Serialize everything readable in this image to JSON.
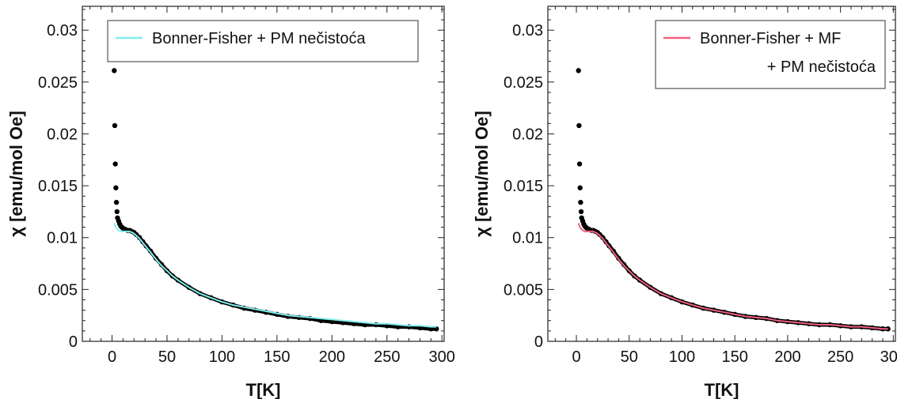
{
  "chart_data": [
    {
      "type": "scatter",
      "xlabel": "T[K]",
      "ylabel": "χ [emu/mol Oe]",
      "xlim": [
        -27,
        302
      ],
      "ylim": [
        0,
        0.0323
      ],
      "x_ticks": [
        0,
        50,
        100,
        150,
        200,
        250,
        300
      ],
      "x_tick_labels": [
        "0",
        "50",
        "100",
        "150",
        "200",
        "250",
        "300"
      ],
      "y_ticks": [
        0,
        0.005,
        0.01,
        0.015,
        0.02,
        0.025,
        0.03
      ],
      "y_tick_labels": [
        "0",
        "0.005",
        "0.01",
        "0.015",
        "0.02",
        "0.025",
        "0.03"
      ],
      "grid": false,
      "legend_position": "top-right",
      "legend_lines": [
        "Bonner-Fisher + PM nečistoća"
      ],
      "series": [
        {
          "type": "scatter",
          "color": "#000000",
          "x": [
            2,
            2.5,
            3,
            3.5,
            4,
            4.5,
            5,
            6,
            7,
            8,
            9,
            10,
            12,
            14,
            16,
            18,
            20,
            22,
            25,
            28,
            31,
            35,
            40,
            45,
            50,
            55,
            60,
            70,
            80,
            90,
            100,
            110,
            120,
            130,
            140,
            150,
            160,
            170,
            180,
            190,
            200,
            210,
            220,
            230,
            240,
            250,
            260,
            270,
            280,
            290,
            295
          ],
          "y": [
            0.0261,
            0.0208,
            0.0171,
            0.0148,
            0.0134,
            0.0125,
            0.0119,
            0.0116,
            0.0113,
            0.0111,
            0.011,
            0.0109,
            0.0108,
            0.0107,
            0.0107,
            0.0106,
            0.0105,
            0.0103,
            0.01,
            0.0096,
            0.0092,
            0.0087,
            0.008,
            0.0074,
            0.0068,
            0.0063,
            0.0059,
            0.0052,
            0.0046,
            0.0042,
            0.0038,
            0.0035,
            0.0032,
            0.003,
            0.0028,
            0.0026,
            0.0024,
            0.0023,
            0.0022,
            0.002,
            0.0019,
            0.0018,
            0.0017,
            0.0016,
            0.0016,
            0.0015,
            0.0014,
            0.0014,
            0.0013,
            0.0012,
            0.0012
          ]
        },
        {
          "type": "line",
          "color": "#80eeee",
          "x": [
            2,
            3,
            4,
            5,
            6,
            8,
            10,
            12,
            14,
            16,
            18,
            20,
            22,
            25,
            28,
            31,
            35,
            40,
            45,
            50,
            55,
            60,
            70,
            80,
            90,
            100,
            110,
            120,
            130,
            140,
            150,
            160,
            170,
            180,
            190,
            200,
            210,
            220,
            230,
            240,
            250,
            260,
            270,
            280,
            290,
            295
          ],
          "y": [
            0.0114,
            0.0111,
            0.0109,
            0.0108,
            0.0107,
            0.0106,
            0.0106,
            0.0106,
            0.0106,
            0.0106,
            0.0105,
            0.0104,
            0.0102,
            0.0099,
            0.0095,
            0.0091,
            0.0086,
            0.0079,
            0.0073,
            0.0068,
            0.0063,
            0.0059,
            0.0052,
            0.0046,
            0.0042,
            0.0038,
            0.0035,
            0.0033,
            0.0031,
            0.0029,
            0.0027,
            0.0025,
            0.0024,
            0.0023,
            0.0022,
            0.0021,
            0.002,
            0.0019,
            0.0018,
            0.0017,
            0.0017,
            0.0016,
            0.0015,
            0.0015,
            0.0014,
            0.0014
          ]
        }
      ]
    },
    {
      "type": "scatter",
      "xlabel": "T[K]",
      "ylabel": "χ [emu/mol Oe]",
      "xlim": [
        -27,
        302
      ],
      "ylim": [
        0,
        0.0323
      ],
      "x_ticks": [
        0,
        50,
        100,
        150,
        200,
        250,
        300
      ],
      "x_tick_labels": [
        "0",
        "50",
        "100",
        "150",
        "200",
        "250",
        "300"
      ],
      "y_ticks": [
        0,
        0.005,
        0.01,
        0.015,
        0.02,
        0.025,
        0.03
      ],
      "y_tick_labels": [
        "0",
        "0.005",
        "0.01",
        "0.015",
        "0.02",
        "0.025",
        "0.03"
      ],
      "grid": false,
      "legend_position": "top-right",
      "legend_lines": [
        "Bonner-Fisher + MF",
        "+ PM nečistoća"
      ],
      "series": [
        {
          "type": "scatter",
          "color": "#000000",
          "x": [
            2,
            2.5,
            3,
            3.5,
            4,
            4.5,
            5,
            6,
            7,
            8,
            9,
            10,
            12,
            14,
            16,
            18,
            20,
            22,
            25,
            28,
            31,
            35,
            40,
            45,
            50,
            55,
            60,
            70,
            80,
            90,
            100,
            110,
            120,
            130,
            140,
            150,
            160,
            170,
            180,
            190,
            200,
            210,
            220,
            230,
            240,
            250,
            260,
            270,
            280,
            290,
            295
          ],
          "y": [
            0.0261,
            0.0208,
            0.0171,
            0.0148,
            0.0134,
            0.0125,
            0.0119,
            0.0116,
            0.0113,
            0.0111,
            0.011,
            0.0109,
            0.0108,
            0.0107,
            0.0107,
            0.0106,
            0.0105,
            0.0103,
            0.01,
            0.0096,
            0.0092,
            0.0087,
            0.008,
            0.0074,
            0.0068,
            0.0063,
            0.0059,
            0.0052,
            0.0046,
            0.0042,
            0.0038,
            0.0035,
            0.0032,
            0.003,
            0.0028,
            0.0026,
            0.0024,
            0.0023,
            0.0022,
            0.002,
            0.0019,
            0.0018,
            0.0017,
            0.0016,
            0.0016,
            0.0015,
            0.0014,
            0.0014,
            0.0013,
            0.0012,
            0.0012
          ]
        },
        {
          "type": "line",
          "color": "#f06080",
          "x": [
            2,
            3,
            4,
            5,
            6,
            8,
            10,
            12,
            14,
            16,
            18,
            20,
            22,
            25,
            28,
            31,
            35,
            40,
            45,
            50,
            55,
            60,
            70,
            80,
            90,
            100,
            110,
            120,
            130,
            140,
            150,
            160,
            170,
            180,
            190,
            200,
            210,
            220,
            230,
            240,
            250,
            260,
            270,
            280,
            290,
            295
          ],
          "y": [
            0.0114,
            0.0111,
            0.0109,
            0.0108,
            0.0107,
            0.0106,
            0.0106,
            0.0106,
            0.0106,
            0.0106,
            0.0105,
            0.0104,
            0.0102,
            0.0099,
            0.0095,
            0.0091,
            0.0086,
            0.0079,
            0.0073,
            0.0068,
            0.0063,
            0.0059,
            0.0052,
            0.0046,
            0.0042,
            0.0038,
            0.0035,
            0.0032,
            0.003,
            0.0028,
            0.0026,
            0.0024,
            0.0023,
            0.0022,
            0.002,
            0.0019,
            0.0018,
            0.0017,
            0.0016,
            0.0016,
            0.0015,
            0.0014,
            0.0014,
            0.0013,
            0.0012,
            0.0012
          ]
        }
      ]
    }
  ]
}
